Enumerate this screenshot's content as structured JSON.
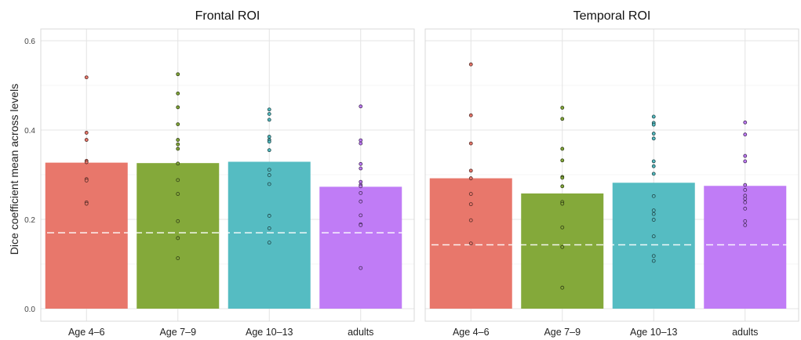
{
  "chart_data": {
    "type": "bar",
    "ylabel": "Dice coefficient mean across levels",
    "ylim": [
      0,
      0.6
    ],
    "yticks": [
      "0.0",
      "0.2",
      "0.4",
      "0.6"
    ],
    "grid": true,
    "categories": [
      "Age 4–6",
      "Age 7–9",
      "Age 10–13",
      "adults"
    ],
    "colors": [
      "#E8776B",
      "#84A93A",
      "#55BCC2",
      "#C07CF6"
    ],
    "panels": [
      {
        "title": "Frontal ROI",
        "values": [
          0.327,
          0.326,
          0.329,
          0.273
        ],
        "baseline": 0.17,
        "points": [
          [
            0.518,
            0.394,
            0.378,
            0.331,
            0.328,
            0.29,
            0.287,
            0.238,
            0.235
          ],
          [
            0.525,
            0.482,
            0.451,
            0.413,
            0.378,
            0.368,
            0.358,
            0.325,
            0.288,
            0.257,
            0.196,
            0.158,
            0.113
          ],
          [
            0.446,
            0.436,
            0.423,
            0.385,
            0.378,
            0.374,
            0.355,
            0.311,
            0.299,
            0.279,
            0.208,
            0.18,
            0.148
          ],
          [
            0.453,
            0.377,
            0.37,
            0.324,
            0.314,
            0.284,
            0.277,
            0.274,
            0.259,
            0.24,
            0.209,
            0.189,
            0.187,
            0.091
          ]
        ]
      },
      {
        "title": "Temporal ROI",
        "values": [
          0.292,
          0.258,
          0.282,
          0.275
        ],
        "baseline": 0.143,
        "points": [
          [
            0.547,
            0.433,
            0.37,
            0.309,
            0.292,
            0.257,
            0.234,
            0.198,
            0.146
          ],
          [
            0.45,
            0.425,
            0.358,
            0.332,
            0.295,
            0.293,
            0.274,
            0.239,
            0.235,
            0.182,
            0.138,
            0.047
          ],
          [
            0.43,
            0.416,
            0.412,
            0.392,
            0.381,
            0.33,
            0.319,
            0.302,
            0.252,
            0.22,
            0.212,
            0.199,
            0.162,
            0.118,
            0.107
          ],
          [
            0.417,
            0.39,
            0.342,
            0.33,
            0.277,
            0.266,
            0.253,
            0.246,
            0.238,
            0.224,
            0.196,
            0.187
          ]
        ]
      }
    ]
  }
}
